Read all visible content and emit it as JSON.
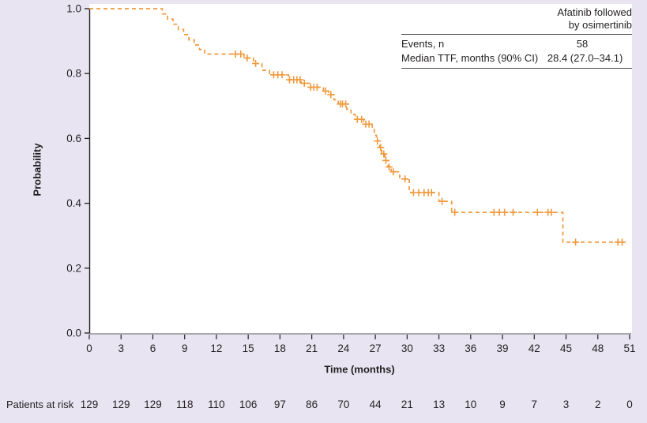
{
  "colors": {
    "background": "#e8e4f2",
    "plot_background": "#ffffff",
    "curve": "#f0993c",
    "axis_left": "#231f20",
    "axis_bottom": "#8f8f8f",
    "text": "#231f20",
    "table_rule": "#4d4d4d"
  },
  "stats_table": {
    "header_line1": "Afatinib followed",
    "header_line2": "by osimertinib",
    "rows": [
      {
        "label": "Events, n",
        "value": "58"
      },
      {
        "label": "Median TTF, months (90% CI)",
        "value": "28.4 (27.0–34.1)"
      }
    ]
  },
  "chart_data": {
    "type": "line",
    "subtype": "kaplan-meier-step",
    "title": "",
    "xlabel": "Time (months)",
    "ylabel": "Probability",
    "xlim": [
      0,
      51
    ],
    "ylim": [
      0.0,
      1.0
    ],
    "xticks": [
      0,
      3,
      6,
      9,
      12,
      15,
      18,
      21,
      24,
      27,
      30,
      33,
      36,
      39,
      42,
      45,
      48,
      51
    ],
    "yticks": [
      0.0,
      0.2,
      0.4,
      0.6,
      0.8,
      1.0
    ],
    "grid": false,
    "legend_position": "none",
    "line_style": "dashed",
    "series": [
      {
        "name": "Afatinib followed by osimertinib",
        "median_ttf_months": "28.4 (27.0-34.1)",
        "events_n": 58,
        "step_points": [
          [
            0,
            1.0
          ],
          [
            6.3,
            1.0
          ],
          [
            6.9,
            0.984
          ],
          [
            7.4,
            0.968
          ],
          [
            7.9,
            0.952
          ],
          [
            8.4,
            0.936
          ],
          [
            8.9,
            0.92
          ],
          [
            9.4,
            0.904
          ],
          [
            9.9,
            0.888
          ],
          [
            10.4,
            0.874
          ],
          [
            10.9,
            0.86
          ],
          [
            14.6,
            0.848
          ],
          [
            15.5,
            0.831
          ],
          [
            16.3,
            0.81
          ],
          [
            17.0,
            0.796
          ],
          [
            18.8,
            0.781
          ],
          [
            20.0,
            0.77
          ],
          [
            20.8,
            0.758
          ],
          [
            22.1,
            0.746
          ],
          [
            22.6,
            0.735
          ],
          [
            23.1,
            0.719
          ],
          [
            23.5,
            0.706
          ],
          [
            24.3,
            0.69
          ],
          [
            24.7,
            0.674
          ],
          [
            25.1,
            0.659
          ],
          [
            25.9,
            0.644
          ],
          [
            26.7,
            0.63
          ],
          [
            26.9,
            0.61
          ],
          [
            27.1,
            0.592
          ],
          [
            27.4,
            0.572
          ],
          [
            27.6,
            0.552
          ],
          [
            27.9,
            0.532
          ],
          [
            28.2,
            0.512
          ],
          [
            28.5,
            0.497
          ],
          [
            29.3,
            0.475
          ],
          [
            30.2,
            0.433
          ],
          [
            33.0,
            0.406
          ],
          [
            34.2,
            0.372
          ],
          [
            44.7,
            0.28
          ],
          [
            50.5,
            0.28
          ]
        ],
        "censor_marks": [
          [
            13.8,
            0.86
          ],
          [
            14.3,
            0.86
          ],
          [
            14.9,
            0.848
          ],
          [
            15.7,
            0.831
          ],
          [
            17.4,
            0.796
          ],
          [
            17.8,
            0.796
          ],
          [
            18.2,
            0.796
          ],
          [
            18.9,
            0.781
          ],
          [
            19.3,
            0.781
          ],
          [
            19.6,
            0.781
          ],
          [
            19.9,
            0.781
          ],
          [
            20.3,
            0.77
          ],
          [
            20.9,
            0.758
          ],
          [
            21.2,
            0.758
          ],
          [
            21.5,
            0.758
          ],
          [
            22.3,
            0.746
          ],
          [
            22.8,
            0.735
          ],
          [
            23.7,
            0.706
          ],
          [
            23.9,
            0.706
          ],
          [
            24.2,
            0.706
          ],
          [
            25.3,
            0.659
          ],
          [
            25.7,
            0.659
          ],
          [
            26.1,
            0.644
          ],
          [
            26.4,
            0.644
          ],
          [
            27.2,
            0.592
          ],
          [
            27.5,
            0.572
          ],
          [
            27.8,
            0.552
          ],
          [
            28.0,
            0.532
          ],
          [
            28.3,
            0.512
          ],
          [
            28.7,
            0.497
          ],
          [
            29.8,
            0.475
          ],
          [
            30.6,
            0.433
          ],
          [
            31.1,
            0.433
          ],
          [
            31.6,
            0.433
          ],
          [
            32.0,
            0.433
          ],
          [
            32.3,
            0.433
          ],
          [
            33.3,
            0.406
          ],
          [
            34.5,
            0.372
          ],
          [
            38.2,
            0.372
          ],
          [
            38.7,
            0.372
          ],
          [
            39.2,
            0.372
          ],
          [
            40.0,
            0.372
          ],
          [
            42.3,
            0.372
          ],
          [
            43.3,
            0.372
          ],
          [
            43.6,
            0.372
          ],
          [
            45.9,
            0.28
          ],
          [
            49.9,
            0.28
          ],
          [
            50.3,
            0.28
          ]
        ]
      }
    ],
    "risk_table": {
      "label": "Patients at risk",
      "times": [
        0,
        3,
        6,
        9,
        12,
        15,
        18,
        21,
        24,
        27,
        30,
        33,
        36,
        39,
        42,
        45,
        48,
        51
      ],
      "counts": [
        129,
        129,
        129,
        118,
        110,
        106,
        97,
        86,
        70,
        44,
        21,
        13,
        10,
        9,
        7,
        3,
        2,
        0
      ]
    }
  }
}
